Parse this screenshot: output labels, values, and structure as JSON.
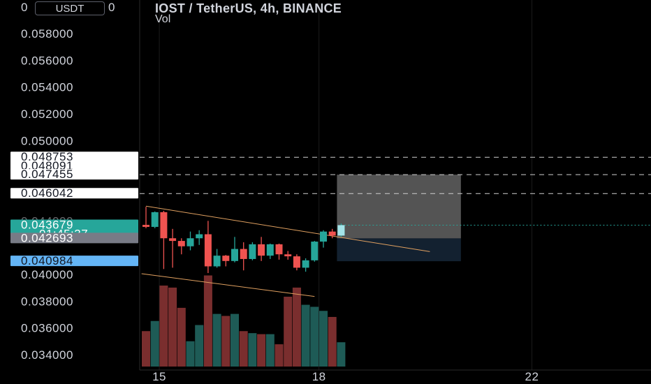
{
  "header": {
    "title": "IOST / TetherUS, 4h, BINANCE",
    "subtitle": "Vol",
    "currency": "USDT"
  },
  "colors": {
    "background": "#000000",
    "up": "#26a69a",
    "down": "#ef5350",
    "vol_up": "#1e5b56",
    "vol_down": "#7a2e2e",
    "trendline": "#e0a060",
    "text": "#d1d4dc",
    "current_price": "#26a69a",
    "target_blue": "#64b5f6"
  },
  "chart_data": {
    "type": "candlestick",
    "symbol": "IOST / TetherUS",
    "interval": "4h",
    "exchange": "BINANCE",
    "ylim": [
      0.033,
      0.0595
    ],
    "y_ticks": [
      "0.058000",
      "0.056000",
      "0.054000",
      "0.052000",
      "0.050000",
      "0.040000",
      "0.038000",
      "0.036000",
      "0.034000"
    ],
    "x_ticks": [
      {
        "label": "15",
        "index": 1.5
      },
      {
        "label": "18",
        "index": 19.5
      },
      {
        "label": "22",
        "index": 43.5
      }
    ],
    "candles": [
      {
        "o": 0.0437,
        "h": 0.04505,
        "l": 0.04345,
        "c": 0.04355
      },
      {
        "o": 0.04355,
        "h": 0.0447,
        "l": 0.04345,
        "c": 0.04465
      },
      {
        "o": 0.04465,
        "h": 0.04475,
        "l": 0.0404,
        "c": 0.0427
      },
      {
        "o": 0.0427,
        "h": 0.0434,
        "l": 0.0405,
        "c": 0.0425
      },
      {
        "o": 0.0425,
        "h": 0.0427,
        "l": 0.0415,
        "c": 0.0421
      },
      {
        "o": 0.0421,
        "h": 0.0432,
        "l": 0.0418,
        "c": 0.0427
      },
      {
        "o": 0.0427,
        "h": 0.0433,
        "l": 0.0422,
        "c": 0.043
      },
      {
        "o": 0.043,
        "h": 0.044,
        "l": 0.0401,
        "c": 0.0406
      },
      {
        "o": 0.0406,
        "h": 0.0419,
        "l": 0.0405,
        "c": 0.0414
      },
      {
        "o": 0.0414,
        "h": 0.04145,
        "l": 0.0406,
        "c": 0.041
      },
      {
        "o": 0.041,
        "h": 0.0428,
        "l": 0.0409,
        "c": 0.0419
      },
      {
        "o": 0.0419,
        "h": 0.0424,
        "l": 0.0403,
        "c": 0.04115
      },
      {
        "o": 0.04115,
        "h": 0.0424,
        "l": 0.04105,
        "c": 0.04225
      },
      {
        "o": 0.04225,
        "h": 0.0428,
        "l": 0.041,
        "c": 0.0414
      },
      {
        "o": 0.0414,
        "h": 0.0423,
        "l": 0.04115,
        "c": 0.04225
      },
      {
        "o": 0.04225,
        "h": 0.0423,
        "l": 0.0411,
        "c": 0.0415
      },
      {
        "o": 0.0415,
        "h": 0.04175,
        "l": 0.0411,
        "c": 0.04135
      },
      {
        "o": 0.04135,
        "h": 0.0415,
        "l": 0.0403,
        "c": 0.0405
      },
      {
        "o": 0.0405,
        "h": 0.0412,
        "l": 0.0402,
        "c": 0.04105
      },
      {
        "o": 0.04105,
        "h": 0.0425,
        "l": 0.04095,
        "c": 0.04245
      },
      {
        "o": 0.04245,
        "h": 0.0433,
        "l": 0.042,
        "c": 0.0432
      },
      {
        "o": 0.0432,
        "h": 0.0434,
        "l": 0.0427,
        "c": 0.0429
      },
      {
        "o": 0.0429,
        "h": 0.0438,
        "l": 0.0428,
        "c": 0.04368
      }
    ],
    "volume_ratio": [
      0.35,
      0.45,
      0.8,
      0.78,
      0.58,
      0.25,
      0.41,
      0.9,
      0.52,
      0.5,
      0.52,
      0.35,
      0.33,
      0.32,
      0.32,
      0.22,
      0.69,
      0.78,
      0.61,
      0.59,
      0.55,
      0.49,
      0.24
    ],
    "price_labels": [
      {
        "value": 0.048753,
        "text": "0.048753",
        "style": "white",
        "dashed": true
      },
      {
        "value": 0.048091,
        "text": "0.048091",
        "style": "white",
        "dashed": false
      },
      {
        "value": 0.047455,
        "text": "0.047455",
        "style": "white",
        "dashed": true
      },
      {
        "value": 0.046042,
        "text": "0.046042",
        "style": "white",
        "dashed": true
      },
      {
        "value": 0.043679,
        "text": "0.043679",
        "style": "green",
        "dashed": false,
        "dotted": true,
        "countdown": "01:45:37"
      },
      {
        "value": 0.042693,
        "text": "0.042693",
        "style": "gray",
        "dashed": false
      },
      {
        "value": 0.040984,
        "text": "0.040984",
        "style": "blue",
        "dashed": false
      }
    ],
    "position_box": {
      "x_start_index": 22,
      "x_end_index": 35.5,
      "entry": 0.042693,
      "target": 0.047455,
      "stop": 0.040984
    },
    "trendlines": [
      {
        "i1": 0,
        "y1": 0.0451,
        "i2": 32,
        "y2": 0.0417
      },
      {
        "i1": -0.5,
        "y1": 0.04005,
        "i2": 19,
        "y2": 0.03835
      }
    ],
    "partial_tick_label": "0.044000"
  }
}
